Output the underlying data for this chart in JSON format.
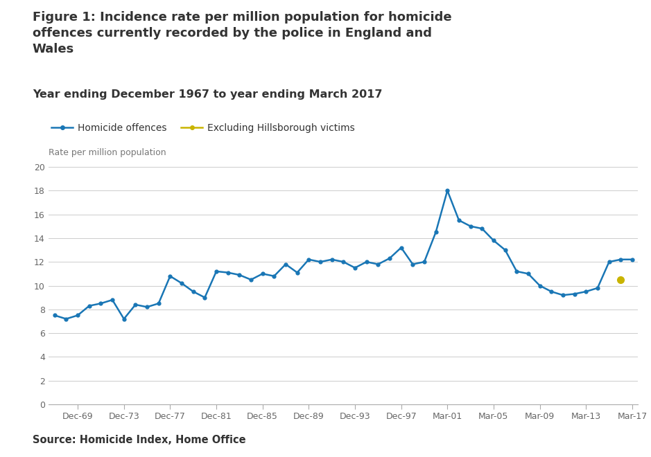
{
  "title": "Figure 1: Incidence rate per million population for homicide\noffences currently recorded by the police in England and\nWales",
  "subtitle": "Year ending December 1967 to year ending March 2017",
  "ylabel": "Rate per million population",
  "source": "Source: Homicide Index, Home Office",
  "legend_homicide": "Homicide offences",
  "legend_excl": "Excluding Hillsborough victims",
  "line_color": "#1976b5",
  "excl_color": "#c9b400",
  "background_color": "#ffffff",
  "ylim": [
    0,
    20
  ],
  "yticks": [
    0,
    2,
    4,
    6,
    8,
    10,
    12,
    14,
    16,
    18,
    20
  ],
  "xtick_labels": [
    "Dec-69",
    "Dec-73",
    "Dec-77",
    "Dec-81",
    "Dec-85",
    "Dec-89",
    "Dec-93",
    "Dec-97",
    "Mar-01",
    "Mar-05",
    "Mar-09",
    "Mar-13",
    "Mar-17"
  ],
  "xtick_positions": [
    1969,
    1973,
    1977,
    1981,
    1985,
    1989,
    1993,
    1997,
    2001,
    2005,
    2009,
    2013,
    2017
  ],
  "homicide_x": [
    1967,
    1968,
    1969,
    1970,
    1971,
    1972,
    1973,
    1974,
    1975,
    1976,
    1977,
    1978,
    1979,
    1980,
    1981,
    1982,
    1983,
    1984,
    1985,
    1986,
    1987,
    1988,
    1989,
    1990,
    1991,
    1992,
    1993,
    1994,
    1995,
    1996,
    1997,
    1998,
    1999,
    2000,
    2001,
    2002,
    2003,
    2004,
    2005,
    2006,
    2007,
    2008,
    2009,
    2010,
    2011,
    2012,
    2013,
    2014,
    2015,
    2016,
    2017
  ],
  "homicide_y": [
    7.5,
    7.2,
    7.5,
    8.3,
    8.5,
    8.8,
    7.2,
    8.4,
    8.2,
    8.5,
    10.8,
    10.2,
    9.5,
    9.0,
    11.2,
    11.1,
    10.9,
    10.5,
    11.0,
    10.8,
    11.8,
    11.1,
    12.2,
    12.0,
    12.2,
    12.0,
    11.5,
    12.0,
    11.8,
    12.3,
    13.2,
    11.8,
    12.0,
    14.5,
    18.0,
    15.5,
    15.0,
    14.8,
    13.8,
    13.0,
    11.2,
    11.0,
    10.0,
    9.5,
    9.2,
    9.3,
    9.5,
    9.8,
    12.0,
    12.2,
    12.2
  ],
  "excl_x": [
    2016
  ],
  "excl_y": [
    10.5
  ],
  "xlim": [
    1966.5,
    2017.5
  ]
}
